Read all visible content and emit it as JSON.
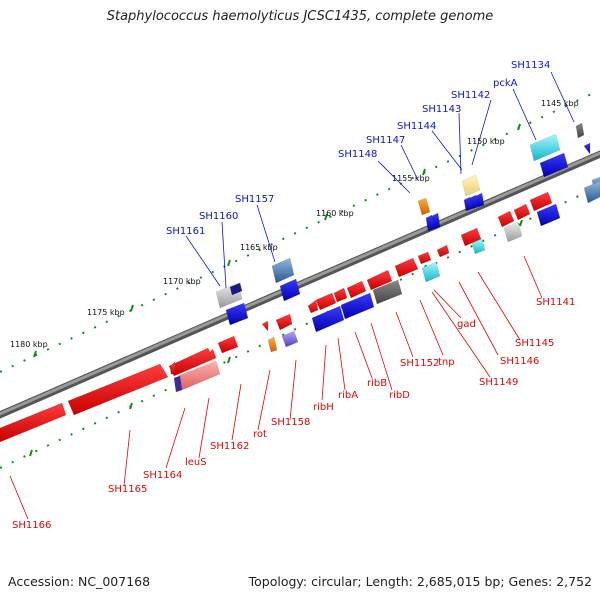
{
  "title": "Staphylococcus haemolyticus JCSC1435, complete genome",
  "footer": {
    "accession": "Accession: NC_007168",
    "topology": "Topology: circular; Length: 2,685,015 bp; Genes: 2,752"
  },
  "scale_labels": [
    "1145 kbp",
    "1150 kbp",
    "1155 kbp",
    "1160 kbp",
    "1165 kbp",
    "1170 kbp",
    "1175 kbp",
    "1180 kbp"
  ],
  "outer_labels": [
    "SH1134",
    "pckA",
    "SH1142",
    "SH1143",
    "SH1144",
    "SH1147",
    "SH1148",
    "SH1157",
    "SH1160",
    "SH1161"
  ],
  "inner_labels": [
    "SH1141",
    "SH1145",
    "SH1146",
    "SH1149",
    "gad",
    "tnp",
    "SH1152",
    "ribD",
    "ribB",
    "ribA",
    "ribH",
    "SH1158",
    "rot",
    "SH1162",
    "leuS",
    "SH1164",
    "SH1165",
    "SH1166"
  ],
  "colors": {
    "backbone": "#7a7a7a",
    "forward_gene": "#1010e8",
    "reverse_gene": "#e81010",
    "pseudo_gene": "#f28a8a",
    "teal_gene": "#20c8d8",
    "steel_gene": "#4a78a8",
    "orange_gene": "#f08a10",
    "violet_gene": "#8070d8",
    "tick_green": "#1a8a1a",
    "label_blue": "#0b16c8",
    "label_red": "#d40a0a"
  }
}
